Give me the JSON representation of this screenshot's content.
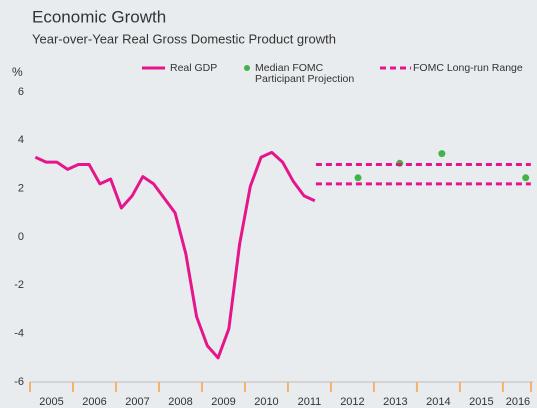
{
  "chart_data": {
    "type": "line",
    "title": "Economic Growth",
    "subtitle": "Year-over-Year Real Gross Domestic Product growth",
    "y_label": "%",
    "xlim": [
      2005,
      2016.7
    ],
    "xticks": [
      2005,
      2006,
      2007,
      2008,
      2009,
      2010,
      2011,
      2012,
      2013,
      2014,
      2015,
      2016
    ],
    "categories": [
      "2005",
      "2006",
      "2007",
      "2008",
      "2009",
      "2010",
      "2011",
      "2012",
      "2013",
      "2014",
      "2015",
      "2016"
    ],
    "ylim": [
      -6,
      6
    ],
    "yticks": [
      -6,
      -4,
      -2,
      0,
      2,
      4,
      6
    ],
    "grid": false,
    "series": [
      {
        "name": "Real GDP",
        "color": "#e5168c",
        "x": [
          2005.125,
          2005.375,
          2005.625,
          2005.875,
          2006.125,
          2006.375,
          2006.625,
          2006.875,
          2007.125,
          2007.375,
          2007.625,
          2007.875,
          2008.125,
          2008.375,
          2008.625,
          2008.875,
          2009.125,
          2009.375,
          2009.625,
          2009.875,
          2010.125,
          2010.375,
          2010.625,
          2010.875,
          2011.125,
          2011.375,
          2011.625
        ],
        "values": [
          3.3,
          3.1,
          3.1,
          2.8,
          3.0,
          3.0,
          2.2,
          2.4,
          1.2,
          1.7,
          2.5,
          2.2,
          1.6,
          1.0,
          -0.7,
          -3.3,
          -4.5,
          -5.0,
          -3.8,
          -0.3,
          2.1,
          3.3,
          3.5,
          3.1,
          2.3,
          1.7,
          1.5
        ]
      },
      {
        "name": "Median FOMC Participant Projection",
        "color": "#3fb549",
        "type": "scatter",
        "x": [
          2012.63,
          2013.6,
          2014.58,
          2016.53
        ],
        "values": [
          2.45,
          3.05,
          3.45,
          2.45
        ]
      }
    ],
    "range": {
      "name": "FOMC Long-run Range",
      "color": "#e5168c",
      "x": [
        2011.65,
        2016.65
      ],
      "low": 2.2,
      "high": 3.0
    }
  }
}
